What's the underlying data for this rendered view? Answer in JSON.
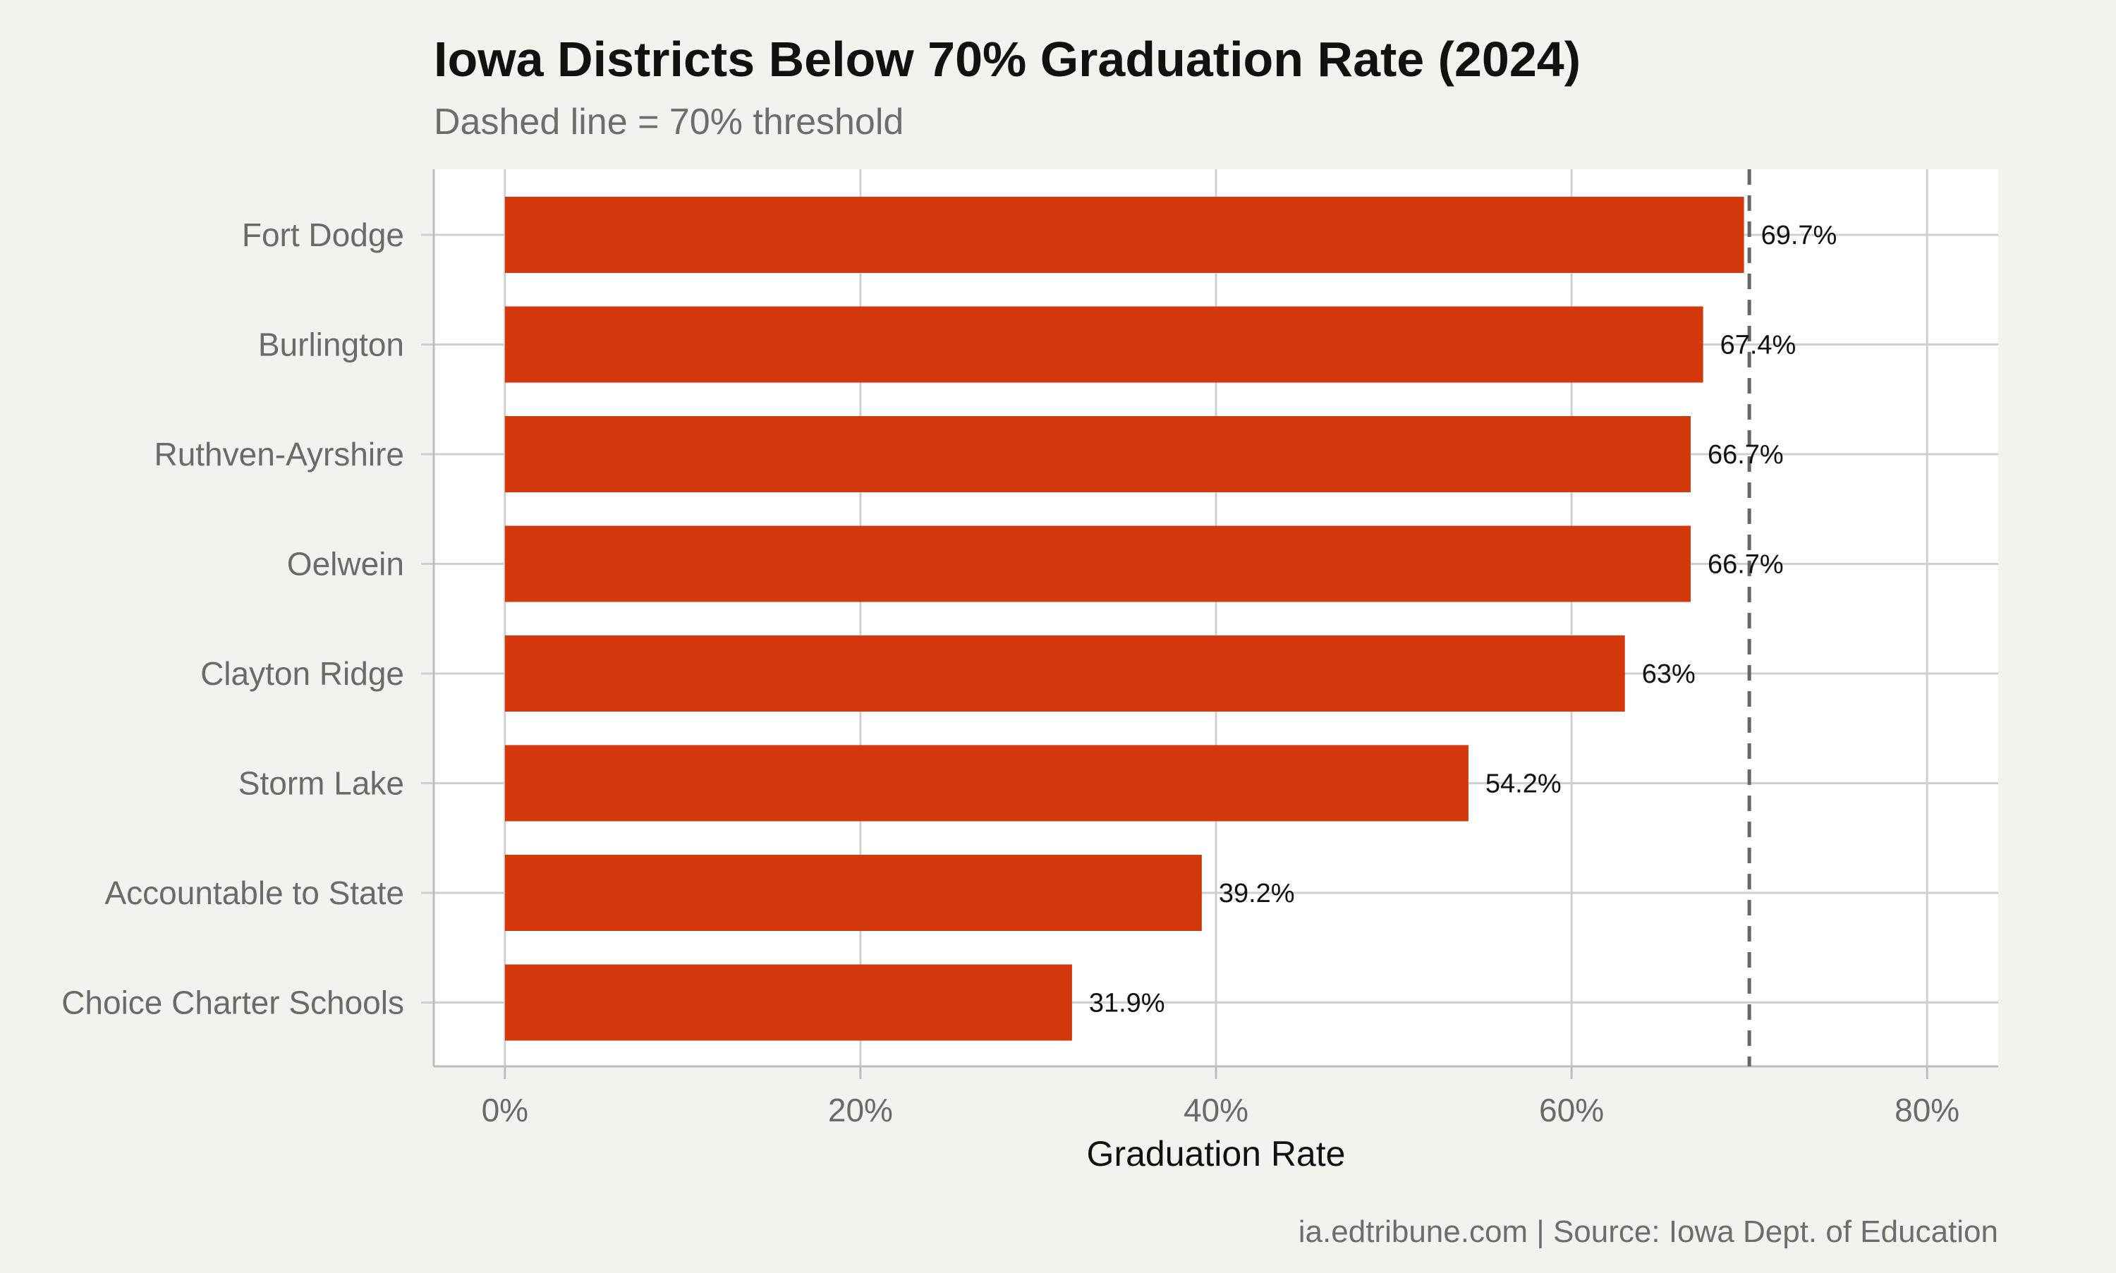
{
  "chart_data": {
    "type": "bar",
    "orientation": "horizontal",
    "title": "Iowa Districts Below 70% Graduation Rate (2024)",
    "subtitle": "Dashed line = 70% threshold",
    "xlabel": "Graduation Rate",
    "ylabel": "",
    "caption": "ia.edtribune.com | Source: Iowa Dept. of Education",
    "categories": [
      "Fort Dodge",
      "Burlington",
      "Ruthven-Ayrshire",
      "Oelwein",
      "Clayton Ridge",
      "Storm Lake",
      "Accountable to State",
      "Choice Charter Schools"
    ],
    "values": [
      69.7,
      67.4,
      66.7,
      66.7,
      63.0,
      54.2,
      39.2,
      31.9
    ],
    "data_labels": [
      "69.7%",
      "67.4%",
      "66.7%",
      "66.7%",
      "63%",
      "54.2%",
      "39.2%",
      "31.9%"
    ],
    "xlim": [
      -4,
      84
    ],
    "xticks": [
      0,
      20,
      40,
      60,
      80
    ],
    "xtick_labels": [
      "0%",
      "20%",
      "40%",
      "60%",
      "80%"
    ],
    "threshold": 70,
    "grid": true,
    "bar_color": "#d4380d",
    "threshold_color": "#666666",
    "panel_background": "#ffffff",
    "page_background": "#f4f2ed",
    "grid_color": "#cfcfcf"
  }
}
